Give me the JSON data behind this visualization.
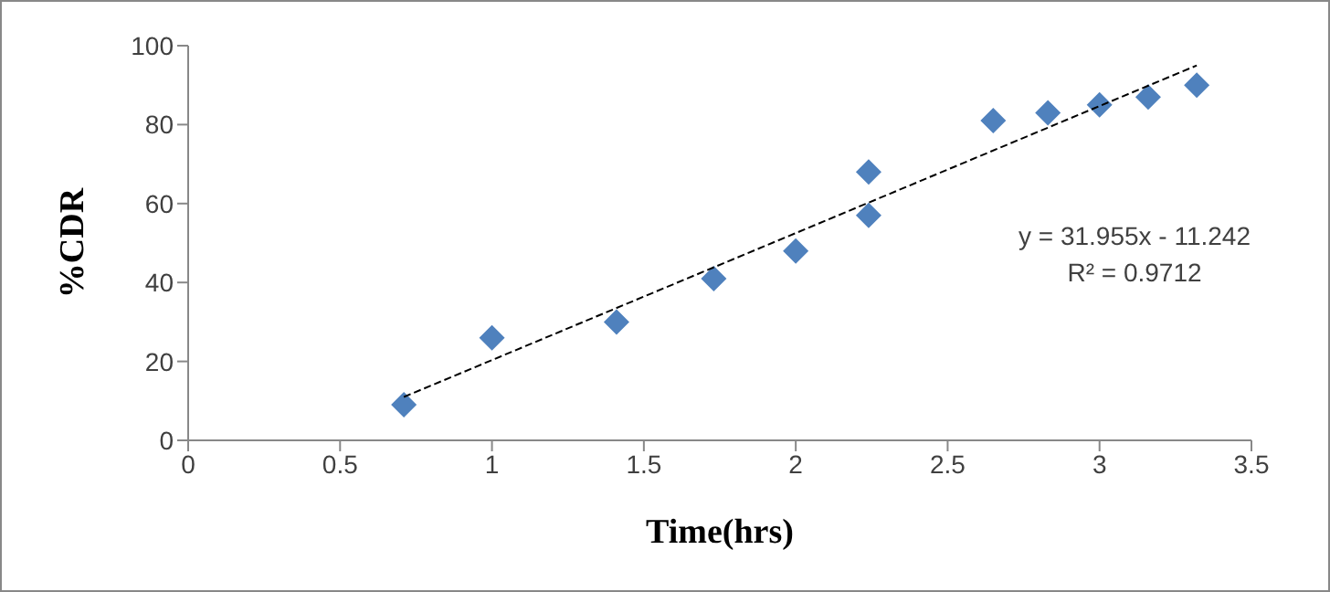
{
  "chart_data": {
    "type": "scatter",
    "xlabel": "Time(hrs)",
    "ylabel": "%CDR",
    "xlim": [
      0,
      3.5
    ],
    "xticks": [
      0,
      0.5,
      1,
      1.5,
      2,
      2.5,
      3,
      3.5
    ],
    "ylim": [
      0,
      100
    ],
    "yticks": [
      0,
      20,
      40,
      60,
      80,
      100
    ],
    "series": [
      {
        "color": "#4f81bd",
        "marker": "diamond",
        "x": [
          0.71,
          1.0,
          1.41,
          1.73,
          2.0,
          2.24,
          2.24,
          2.65,
          2.83,
          3.0,
          3.16,
          3.32
        ],
        "values": [
          9,
          26,
          30,
          41,
          48,
          57,
          68,
          81,
          83,
          85,
          87,
          90
        ]
      },
      {
        "type": "line",
        "color": "#000000",
        "marker": "none",
        "line_style": "dashed",
        "x": [
          0.71,
          3.32
        ],
        "values": [
          11,
          95
        ]
      }
    ],
    "annotations": [
      "y = 31.955x - 11.242",
      "R² = 0.9712"
    ]
  }
}
